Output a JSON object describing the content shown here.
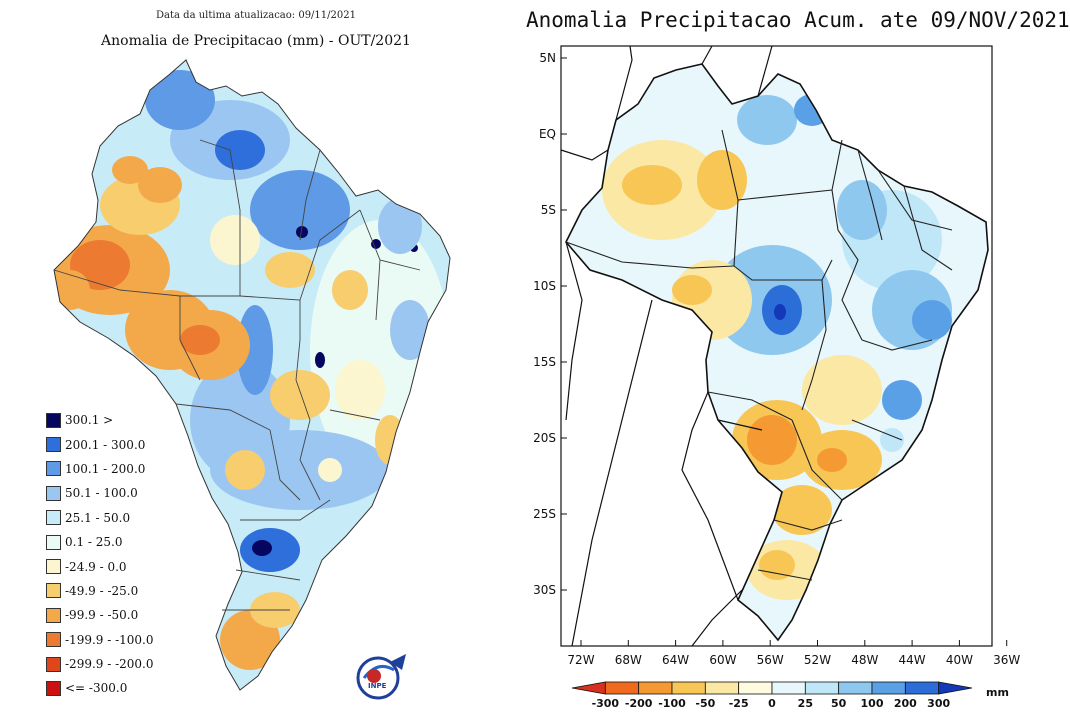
{
  "left_panel": {
    "update_text": "Data da ultima atualizacao: 09/11/2021",
    "title": "Anomalia de Precipitacao (mm) - OUT/2021",
    "legend": [
      {
        "label": "300.1 >",
        "color": "#06065e"
      },
      {
        "label": "200.1 - 300.0",
        "color": "#2f6fdc"
      },
      {
        "label": "100.1 - 200.0",
        "color": "#5f9ae6"
      },
      {
        "label": "50.1 - 100.0",
        "color": "#9cc6f2"
      },
      {
        "label": "25.1 - 50.0",
        "color": "#c8ebf8"
      },
      {
        "label": "0.1 - 25.0",
        "color": "#eafaf4"
      },
      {
        "label": "-24.9 - 0.0",
        "color": "#fbf6cf"
      },
      {
        "label": "-49.9 - -25.0",
        "color": "#f7cd6e"
      },
      {
        "label": "-99.9 - -50.0",
        "color": "#f3a94a"
      },
      {
        "label": "-199.9 - -100.0",
        "color": "#ec7a30"
      },
      {
        "label": "-299.9 - -200.0",
        "color": "#e0461c"
      },
      {
        "label": "<= -300.0",
        "color": "#cc1111"
      }
    ],
    "logo_text": "INPE"
  },
  "right_panel": {
    "title": "Anomalia Precipitacao Acum. ate 09/NOV/2021",
    "lat_ticks": [
      "5N",
      "EQ",
      "5S",
      "10S",
      "15S",
      "20S",
      "25S",
      "30S"
    ],
    "lon_ticks": [
      "72W",
      "68W",
      "64W",
      "60W",
      "56W",
      "52W",
      "48W",
      "44W",
      "40W",
      "36W"
    ],
    "colorbar_labels": [
      "-300",
      "-200",
      "-100",
      "-50",
      "-25",
      "0",
      "25",
      "50",
      "100",
      "200",
      "300"
    ],
    "colorbar_colors": [
      "#d7301f",
      "#f06a1e",
      "#f59a33",
      "#f8c654",
      "#fbe8a4",
      "#fffbe0",
      "#e7f7fb",
      "#bfe7f7",
      "#8fc8ef",
      "#5aa0e6",
      "#2c6ed8",
      "#1338b8"
    ],
    "colorbar_unit": "mm"
  }
}
